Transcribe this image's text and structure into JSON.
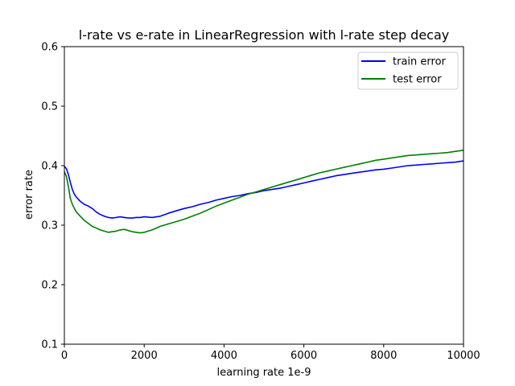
{
  "chart_data": {
    "type": "line",
    "title": "l-rate vs e-rate in LinearRegression with l-rate step decay",
    "xlabel": "learning rate 1e-9",
    "ylabel": "error rate",
    "xlim": [
      0,
      10000
    ],
    "ylim": [
      0.1,
      0.6
    ],
    "x_ticks": [
      0,
      2000,
      4000,
      6000,
      8000,
      10000
    ],
    "y_ticks": [
      0.1,
      0.2,
      0.3,
      0.4,
      0.5,
      0.6
    ],
    "x_tick_labels": [
      "0",
      "2000",
      "4000",
      "6000",
      "8000",
      "10000"
    ],
    "y_tick_labels": [
      "0.1",
      "0.2",
      "0.3",
      "0.4",
      "0.5",
      "0.6"
    ],
    "grid": false,
    "legend_position": "top-right",
    "series": [
      {
        "name": "train error",
        "color": "#0000ff",
        "x": [
          0,
          50,
          100,
          150,
          200,
          250,
          300,
          400,
          500,
          600,
          700,
          800,
          900,
          1000,
          1100,
          1200,
          1300,
          1400,
          1500,
          1600,
          1700,
          1800,
          1900,
          2000,
          2200,
          2400,
          2600,
          2800,
          3000,
          3200,
          3400,
          3600,
          3800,
          4000,
          4200,
          4400,
          4600,
          4800,
          5000,
          5200,
          5400,
          5600,
          5800,
          6000,
          6200,
          6400,
          6600,
          6800,
          7000,
          7200,
          7400,
          7600,
          7800,
          8000,
          8200,
          8400,
          8600,
          8800,
          9000,
          9200,
          9400,
          9600,
          9800,
          10000
        ],
        "y": [
          0.399,
          0.395,
          0.385,
          0.372,
          0.36,
          0.352,
          0.347,
          0.34,
          0.335,
          0.332,
          0.328,
          0.322,
          0.318,
          0.315,
          0.313,
          0.312,
          0.313,
          0.314,
          0.313,
          0.312,
          0.312,
          0.313,
          0.313,
          0.314,
          0.313,
          0.315,
          0.32,
          0.324,
          0.328,
          0.331,
          0.335,
          0.338,
          0.342,
          0.345,
          0.348,
          0.35,
          0.353,
          0.355,
          0.358,
          0.36,
          0.362,
          0.365,
          0.368,
          0.371,
          0.374,
          0.377,
          0.38,
          0.383,
          0.385,
          0.387,
          0.389,
          0.391,
          0.393,
          0.394,
          0.396,
          0.398,
          0.4,
          0.401,
          0.402,
          0.403,
          0.404,
          0.405,
          0.406,
          0.408
        ]
      },
      {
        "name": "test error",
        "color": "#008000",
        "x": [
          0,
          50,
          100,
          150,
          200,
          250,
          300,
          400,
          500,
          600,
          700,
          800,
          900,
          1000,
          1100,
          1200,
          1300,
          1400,
          1500,
          1600,
          1700,
          1800,
          1900,
          2000,
          2200,
          2400,
          2600,
          2800,
          3000,
          3200,
          3400,
          3600,
          3800,
          4000,
          4200,
          4400,
          4600,
          4800,
          5000,
          5200,
          5400,
          5600,
          5800,
          6000,
          6200,
          6400,
          6600,
          6800,
          7000,
          7200,
          7400,
          7600,
          7800,
          8000,
          8200,
          8400,
          8600,
          8800,
          9000,
          9200,
          9400,
          9600,
          9800,
          10000
        ],
        "y": [
          0.39,
          0.382,
          0.365,
          0.345,
          0.335,
          0.328,
          0.322,
          0.315,
          0.308,
          0.303,
          0.298,
          0.295,
          0.292,
          0.29,
          0.288,
          0.289,
          0.29,
          0.292,
          0.293,
          0.291,
          0.289,
          0.288,
          0.287,
          0.288,
          0.292,
          0.298,
          0.302,
          0.306,
          0.31,
          0.315,
          0.32,
          0.326,
          0.332,
          0.337,
          0.342,
          0.347,
          0.352,
          0.356,
          0.36,
          0.364,
          0.368,
          0.372,
          0.376,
          0.38,
          0.384,
          0.388,
          0.391,
          0.394,
          0.397,
          0.4,
          0.403,
          0.406,
          0.409,
          0.411,
          0.413,
          0.415,
          0.417,
          0.418,
          0.419,
          0.42,
          0.421,
          0.422,
          0.424,
          0.426
        ]
      }
    ]
  }
}
